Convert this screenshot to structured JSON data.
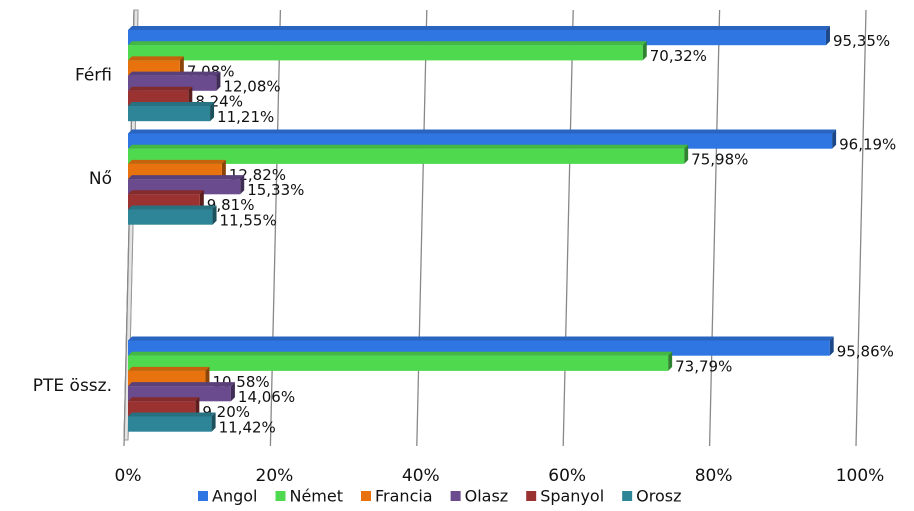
{
  "chart_data": {
    "type": "bar",
    "orientation": "horizontal",
    "three_d": true,
    "categories": [
      "Férfi",
      "Nő",
      null,
      "PTE össz."
    ],
    "series": [
      {
        "name": "Angol",
        "color": "#2f76e2",
        "values": [
          95.35,
          96.19,
          null,
          95.86
        ],
        "value_labels": [
          "95,35%",
          "96,19%",
          null,
          "95,86%"
        ]
      },
      {
        "name": "Német",
        "color": "#4fd94f",
        "values": [
          70.32,
          75.98,
          null,
          73.79
        ],
        "value_labels": [
          "70,32%",
          "75,98%",
          null,
          "73,79%"
        ]
      },
      {
        "name": "Francia",
        "color": "#e8730e",
        "values": [
          7.08,
          12.82,
          null,
          10.58
        ],
        "value_labels": [
          "7,08%",
          "12,82%",
          null,
          "10,58%"
        ]
      },
      {
        "name": "Olasz",
        "color": "#6a4b8e",
        "values": [
          12.08,
          15.33,
          null,
          14.06
        ],
        "value_labels": [
          "12,08%",
          "15,33%",
          null,
          "14,06%"
        ]
      },
      {
        "name": "Spanyol",
        "color": "#9b3232",
        "values": [
          8.24,
          9.81,
          null,
          9.2
        ],
        "value_labels": [
          "8,24%",
          "9,81%",
          null,
          "9,20%"
        ]
      },
      {
        "name": "Orosz",
        "color": "#2f8598",
        "values": [
          11.21,
          11.55,
          null,
          11.42
        ],
        "value_labels": [
          "11,21%",
          "11,55%",
          null,
          "11,42%"
        ]
      }
    ],
    "xlim": [
      0,
      100
    ],
    "xticks": [
      {
        "value": 0,
        "label": "0%"
      },
      {
        "value": 20,
        "label": "20%"
      },
      {
        "value": 40,
        "label": "40%"
      },
      {
        "value": 60,
        "label": "60%"
      },
      {
        "value": 80,
        "label": "80%"
      },
      {
        "value": 100,
        "label": "100%"
      }
    ],
    "grid": true,
    "legend": "bottom"
  }
}
